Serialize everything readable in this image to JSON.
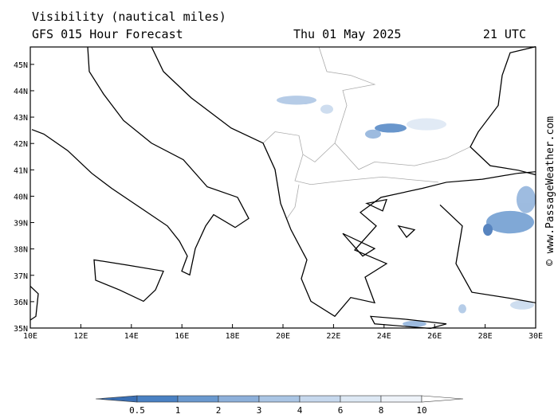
{
  "header": {
    "title": "Visibility (nautical miles)",
    "subtitle": "GFS 015 Hour Forecast",
    "date": "Thu 01 May 2025",
    "time": "21 UTC"
  },
  "map": {
    "lon_range": [
      10,
      30
    ],
    "lat_range": [
      35,
      45.66
    ],
    "lon_ticks": [
      {
        "value": 10,
        "label": "10E"
      },
      {
        "value": 12,
        "label": "12E"
      },
      {
        "value": 14,
        "label": "14E"
      },
      {
        "value": 16,
        "label": "16E"
      },
      {
        "value": 18,
        "label": "18E"
      },
      {
        "value": 20,
        "label": "20E"
      },
      {
        "value": 22,
        "label": "22E"
      },
      {
        "value": 24,
        "label": "24E"
      },
      {
        "value": 26,
        "label": "26E"
      },
      {
        "value": 28,
        "label": "28E"
      },
      {
        "value": 30,
        "label": "30E"
      }
    ],
    "lat_ticks": [
      {
        "value": 35,
        "label": "35N"
      },
      {
        "value": 36,
        "label": "36N"
      },
      {
        "value": 37,
        "label": "37N"
      },
      {
        "value": 38,
        "label": "38N"
      },
      {
        "value": 39,
        "label": "39N"
      },
      {
        "value": 40,
        "label": "40N"
      },
      {
        "value": 41,
        "label": "41N"
      },
      {
        "value": 42,
        "label": "42N"
      },
      {
        "value": 43,
        "label": "43N"
      },
      {
        "value": 44,
        "label": "44N"
      },
      {
        "value": 45,
        "label": "45N"
      }
    ]
  },
  "colorbar": {
    "levels": [
      0.5,
      1,
      2,
      3,
      4,
      6,
      8,
      10
    ],
    "colors": [
      "#3a6fb4",
      "#4a81c3",
      "#6a99cf",
      "#8db0da",
      "#aac5e4",
      "#c6d8ed",
      "#dde8f4",
      "#eef3f9",
      "#ffffff"
    ]
  },
  "watermark": "© www.PassageWeather.com"
}
